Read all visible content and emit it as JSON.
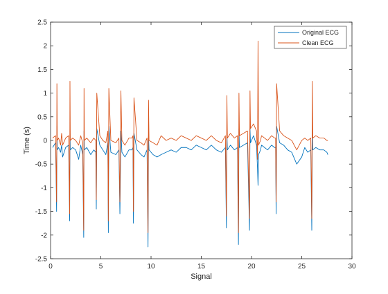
{
  "chart_data": {
    "type": "line",
    "title": "",
    "xlabel": "Signal",
    "ylabel": "Time (s)",
    "xlim": [
      0,
      30
    ],
    "ylim": [
      -2.5,
      2.5
    ],
    "xticks": [
      0,
      5,
      10,
      15,
      20,
      25,
      30
    ],
    "yticks": [
      -2.5,
      -2,
      -1.5,
      -1,
      -0.5,
      0,
      0.5,
      1,
      1.5,
      2,
      2.5
    ],
    "xtick_labels": [
      "0",
      "5",
      "10",
      "15",
      "20",
      "25",
      "30"
    ],
    "ytick_labels": [
      "-2.5",
      "-2",
      "-1.5",
      "-1",
      "-0.5",
      "0",
      "0.5",
      "1",
      "1.5",
      "2",
      "2.5"
    ],
    "grid": false,
    "legend_position": "top-right",
    "series": [
      {
        "name": "Original ECG",
        "color": "#0072BD",
        "x": [
          0.2,
          0.5,
          0.6,
          0.63,
          0.66,
          0.8,
          1.0,
          1.1,
          1.2,
          1.5,
          1.8,
          1.9,
          1.93,
          1.96,
          2.2,
          2.5,
          2.8,
          2.9,
          3.0,
          3.2,
          3.3,
          3.33,
          3.36,
          3.6,
          4.0,
          4.3,
          4.5,
          4.55,
          4.6,
          4.9,
          5.2,
          5.5,
          5.7,
          5.75,
          5.8,
          6.0,
          6.5,
          6.8,
          6.9,
          7.0,
          7.1,
          7.4,
          7.8,
          8.1,
          8.2,
          8.25,
          8.3,
          8.6,
          9.0,
          9.3,
          9.6,
          9.7,
          9.75,
          9.8,
          10.2,
          10.6,
          11.0,
          11.5,
          12.0,
          12.5,
          13.0,
          13.5,
          14.0,
          14.5,
          15.0,
          15.5,
          16.0,
          16.5,
          17.0,
          17.4,
          17.5,
          17.55,
          17.6,
          17.9,
          18.3,
          18.6,
          18.7,
          18.75,
          18.8,
          19.2,
          19.6,
          19.8,
          19.85,
          19.9,
          20.2,
          20.5,
          20.6,
          20.65,
          20.7,
          20.9,
          21.0,
          21.3,
          21.6,
          22.0,
          22.3,
          22.4,
          22.45,
          22.5,
          22.8,
          23.2,
          23.6,
          24.0,
          24.5,
          25.0,
          25.3,
          25.6,
          25.9,
          26.0,
          26.05,
          26.1,
          26.4,
          26.8,
          27.2,
          27.5,
          27.6
        ],
        "y": [
          -0.15,
          -0.05,
          -1.5,
          0.3,
          -0.2,
          -0.15,
          -0.25,
          -0.1,
          -0.35,
          -0.15,
          -0.1,
          -1.7,
          0.25,
          -0.2,
          -0.15,
          -0.2,
          -0.4,
          -0.25,
          -0.1,
          -0.3,
          -2.05,
          0.2,
          -0.2,
          -0.15,
          -0.3,
          -0.2,
          -0.25,
          -1.45,
          0.25,
          -0.1,
          -0.2,
          -0.3,
          -0.05,
          -1.95,
          0.3,
          -0.25,
          -0.3,
          -0.2,
          -1.55,
          0.2,
          -0.25,
          -0.35,
          -0.2,
          -0.2,
          -0.15,
          -1.75,
          0.15,
          -0.2,
          -0.3,
          -0.35,
          -0.2,
          -2.25,
          0.1,
          -0.2,
          -0.3,
          -0.35,
          -0.3,
          -0.25,
          -0.2,
          -0.25,
          -0.15,
          -0.15,
          -0.2,
          -0.1,
          -0.15,
          -0.2,
          -0.1,
          -0.2,
          -0.25,
          -0.15,
          -1.85,
          0.15,
          -0.2,
          -0.1,
          -0.2,
          -0.15,
          -2.2,
          0.25,
          -0.15,
          -0.1,
          -0.05,
          -1.9,
          0.25,
          -0.05,
          0.1,
          -0.1,
          -0.6,
          -0.95,
          -0.3,
          -0.2,
          -0.1,
          -0.15,
          -0.2,
          -0.1,
          -0.15,
          -0.15,
          -1.55,
          0.3,
          -0.05,
          -0.1,
          -0.2,
          -0.25,
          -0.5,
          -0.35,
          -0.15,
          -0.25,
          -0.2,
          -1.9,
          0.3,
          -0.2,
          -0.15,
          -0.2,
          -0.2,
          -0.25,
          -0.3
        ]
      },
      {
        "name": "Clean ECG",
        "color": "#D95319",
        "x": [
          0.2,
          0.5,
          0.6,
          0.63,
          0.66,
          0.8,
          1.0,
          1.1,
          1.2,
          1.5,
          1.8,
          1.9,
          1.93,
          1.96,
          2.2,
          2.5,
          2.8,
          2.9,
          3.0,
          3.2,
          3.3,
          3.33,
          3.36,
          3.6,
          4.0,
          4.3,
          4.5,
          4.55,
          4.6,
          4.9,
          5.2,
          5.5,
          5.7,
          5.75,
          5.8,
          6.0,
          6.5,
          6.8,
          6.9,
          7.0,
          7.1,
          7.4,
          7.8,
          8.1,
          8.2,
          8.25,
          8.3,
          8.6,
          9.0,
          9.3,
          9.6,
          9.7,
          9.75,
          9.8,
          10.2,
          10.6,
          11.0,
          11.5,
          12.0,
          12.5,
          13.0,
          13.5,
          14.0,
          14.5,
          15.0,
          15.5,
          16.0,
          16.5,
          17.0,
          17.4,
          17.5,
          17.55,
          17.6,
          17.9,
          18.3,
          18.6,
          18.7,
          18.75,
          18.8,
          19.2,
          19.6,
          19.8,
          19.85,
          19.9,
          20.2,
          20.5,
          20.6,
          20.65,
          20.7,
          20.9,
          21.0,
          21.3,
          21.6,
          22.0,
          22.3,
          22.4,
          22.45,
          22.5,
          22.8,
          23.2,
          23.6,
          24.0,
          24.5,
          25.0,
          25.3,
          25.6,
          25.9,
          26.0,
          26.05,
          26.1,
          26.4,
          26.8,
          27.2,
          27.5,
          27.6
        ],
        "y": [
          0.05,
          0.1,
          -1.3,
          1.2,
          0.0,
          0.05,
          -0.1,
          0.15,
          -0.1,
          0.05,
          0.1,
          -1.55,
          1.25,
          0.0,
          0.05,
          0.0,
          -0.1,
          0.0,
          0.1,
          -0.05,
          -1.9,
          1.1,
          0.0,
          0.05,
          -0.05,
          0.05,
          0.0,
          -1.25,
          1.0,
          0.1,
          0.0,
          -0.05,
          0.2,
          -1.7,
          1.1,
          0.0,
          -0.05,
          0.05,
          -1.3,
          1.05,
          0.0,
          -0.1,
          0.05,
          0.05,
          0.1,
          -1.5,
          0.9,
          0.0,
          -0.05,
          -0.1,
          0.05,
          -1.95,
          0.85,
          0.0,
          -0.05,
          -0.1,
          0.1,
          0.0,
          0.05,
          0.0,
          0.1,
          0.05,
          0.0,
          0.1,
          0.05,
          0.0,
          0.1,
          0.0,
          -0.05,
          0.1,
          -1.6,
          0.95,
          0.05,
          0.15,
          0.05,
          0.1,
          -1.95,
          1.0,
          0.1,
          0.15,
          0.2,
          -1.65,
          1.05,
          0.25,
          0.35,
          0.2,
          -0.4,
          2.1,
          -0.1,
          0.0,
          0.1,
          0.05,
          0.0,
          0.1,
          0.05,
          0.05,
          -1.3,
          1.2,
          0.2,
          0.1,
          0.05,
          0.0,
          -0.2,
          0.0,
          0.05,
          0.0,
          0.05,
          -1.65,
          1.25,
          0.05,
          0.1,
          0.05,
          0.05,
          0.0,
          0.0
        ]
      }
    ]
  }
}
